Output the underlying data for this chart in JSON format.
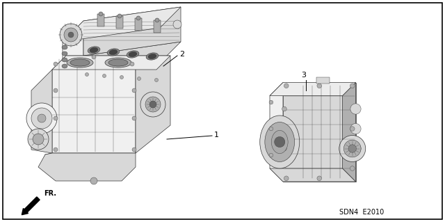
{
  "background_color": "#ffffff",
  "border_color": "#000000",
  "label_1": "1",
  "label_2": "2",
  "label_3": "3",
  "footer_text": "SDN4  E2010",
  "fr_text": "FR.",
  "fig_width": 6.4,
  "fig_height": 3.19,
  "dpi": 100,
  "text_color": "#000000",
  "line_color": "#000000",
  "gray_light": "#f0f0f0",
  "gray_mid": "#d8d8d8",
  "gray_dark": "#b0b0b0",
  "gray_darker": "#888888"
}
